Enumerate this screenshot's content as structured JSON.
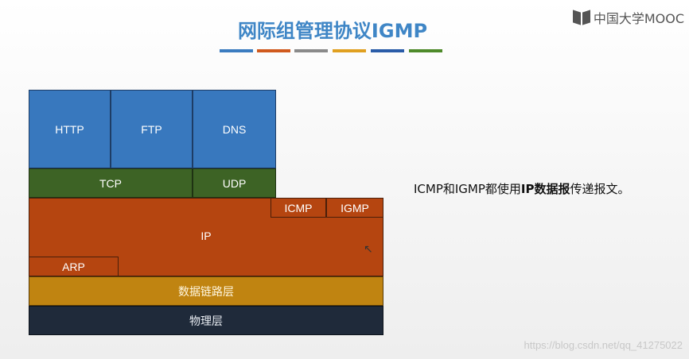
{
  "title": "网际组管理协议IGMP",
  "title_bar_colors": [
    "#3b7cc0",
    "#d05a1e",
    "#8a8a8a",
    "#e0a020",
    "#2a5ca8",
    "#4e8a2a"
  ],
  "logo": {
    "text": "中国大学MOOC"
  },
  "diagram": {
    "application_layer": [
      "HTTP",
      "FTP",
      "DNS"
    ],
    "transport_layer": [
      "TCP",
      "UDP"
    ],
    "network_layer": {
      "label": "IP",
      "sub_protocols": [
        "ICMP",
        "IGMP"
      ],
      "lower_protocol": "ARP"
    },
    "data_link_layer": "数据链路层",
    "physical_layer": "物理层"
  },
  "note": {
    "before": "ICMP和IGMP都使用",
    "bold": "IP数据报",
    "after": "传递报文。"
  },
  "watermark": "https://blog.csdn.net/qq_41275022",
  "colors": {
    "application": "#3878be",
    "transport": "#3d6325",
    "network": "#b54510",
    "data_link": "#c08411",
    "physical": "#1f2a3a"
  }
}
